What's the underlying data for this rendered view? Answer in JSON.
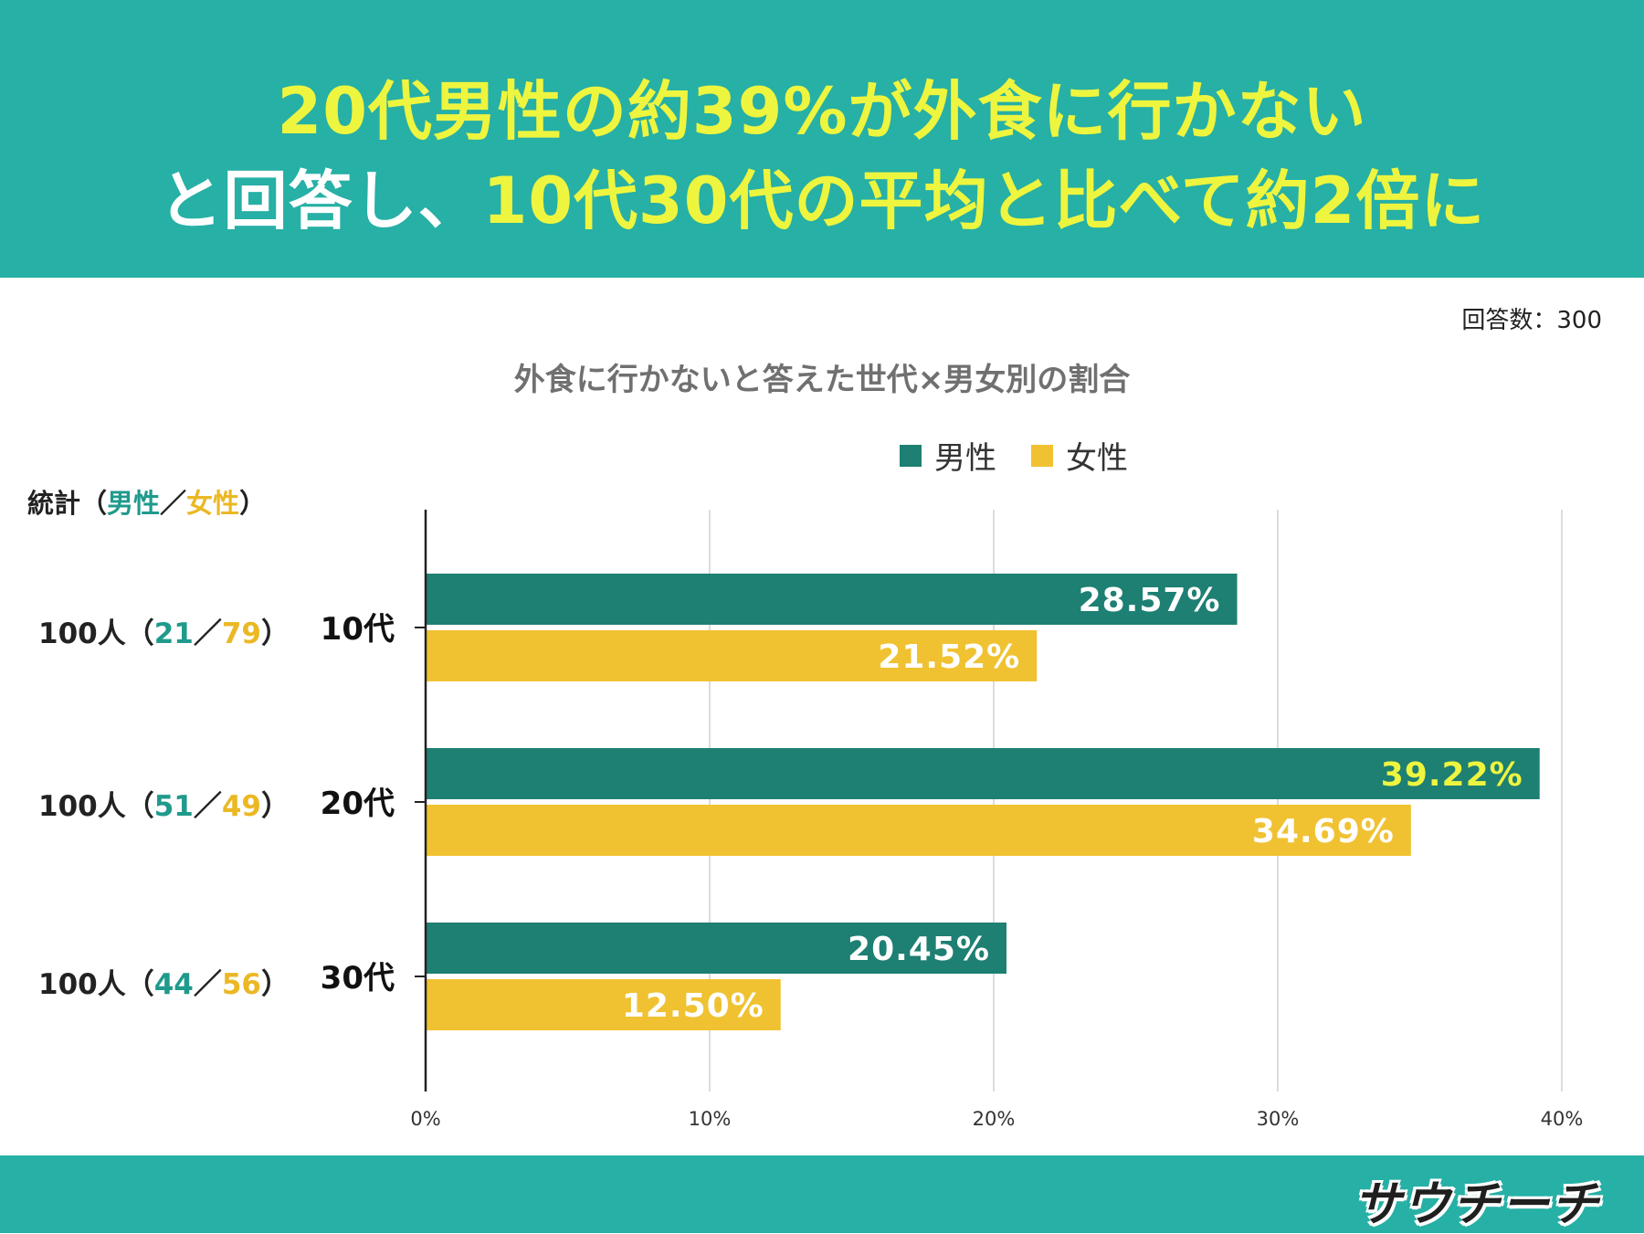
{
  "headline": {
    "line1": "20代男性の約39%が外食に行かない",
    "line2_prefix": "と回答し、",
    "line2_rest": "10代30代の平均と比べて約2倍に"
  },
  "respondents": "回答数：300",
  "stats": {
    "label": "統計（",
    "male_word": "男性",
    "slash": "／",
    "female_word": "女性",
    "close": "）",
    "rows": [
      {
        "total": "100人（",
        "male": "21",
        "slash": "／",
        "female": "79",
        "close": "）"
      },
      {
        "total": "100人（",
        "male": "51",
        "slash": "／",
        "female": "49",
        "close": "）"
      },
      {
        "total": "100人（",
        "male": "44",
        "slash": "／",
        "female": "56",
        "close": "）"
      }
    ]
  },
  "colors": {
    "header": "#27b0a5",
    "male": "#1e7f73",
    "female": "#f0c232",
    "highlight_text": "#eef53f"
  },
  "chart_data": {
    "type": "bar",
    "orientation": "horizontal",
    "title": "外食に行かないと答えた世代×男女別の割合",
    "categories": [
      "10代",
      "20代",
      "30代"
    ],
    "series": [
      {
        "name": "男性",
        "values": [
          28.57,
          39.22,
          20.45
        ],
        "labels": [
          "28.57%",
          "39.22%",
          "20.45%"
        ]
      },
      {
        "name": "女性",
        "values": [
          21.52,
          34.69,
          12.5
        ],
        "labels": [
          "21.52%",
          "34.69%",
          "12.50%"
        ]
      }
    ],
    "xlim": [
      0,
      40
    ],
    "xticks": [
      0,
      10,
      20,
      30,
      40
    ],
    "xtick_labels": [
      "0%",
      "10%",
      "20%",
      "30%",
      "40%"
    ],
    "grid": true,
    "legend_position": "top-center",
    "highlight": {
      "series": 0,
      "category": 1
    }
  },
  "logo": "サウチーチ"
}
